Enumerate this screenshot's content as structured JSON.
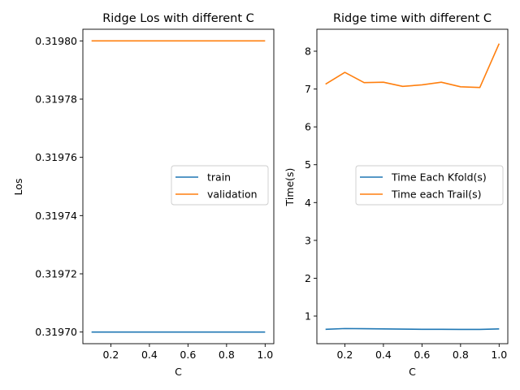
{
  "chart_data": [
    {
      "type": "line",
      "title": "Ridge Los with different C",
      "xlabel": "C",
      "ylabel": "Los",
      "xlim": [
        0.055,
        1.045
      ],
      "ylim": [
        0.319696,
        0.319804
      ],
      "xticks": [
        0.2,
        0.4,
        0.6,
        0.8,
        1.0
      ],
      "xtick_labels": [
        "0.2",
        "0.4",
        "0.6",
        "0.8",
        "1.0"
      ],
      "yticks": [
        0.3197,
        0.31972,
        0.31974,
        0.31976,
        0.31978,
        0.3198
      ],
      "ytick_labels": [
        "0.31970",
        "0.31972",
        "0.31974",
        "0.31976",
        "0.31978",
        "0.31980"
      ],
      "x": [
        0.1,
        0.2,
        0.3,
        0.4,
        0.5,
        0.6,
        0.7,
        0.8,
        0.9,
        1.0
      ],
      "series": [
        {
          "name": "train",
          "color": "#1f77b4",
          "values": [
            0.3197,
            0.3197,
            0.3197,
            0.3197,
            0.3197,
            0.3197,
            0.3197,
            0.3197,
            0.3197,
            0.3197
          ]
        },
        {
          "name": "validation",
          "color": "#ff7f0e",
          "values": [
            0.3198,
            0.3198,
            0.3198,
            0.3198,
            0.3198,
            0.3198,
            0.3198,
            0.3198,
            0.3198,
            0.3198
          ]
        }
      ],
      "legend": "center-right",
      "grid": false
    },
    {
      "type": "line",
      "title": "Ridge time with different C",
      "xlabel": "C",
      "ylabel": "Time(s)",
      "xlim": [
        0.055,
        1.045
      ],
      "ylim": [
        0.27,
        8.58
      ],
      "xticks": [
        0.2,
        0.4,
        0.6,
        0.8,
        1.0
      ],
      "xtick_labels": [
        "0.2",
        "0.4",
        "0.6",
        "0.8",
        "1.0"
      ],
      "yticks": [
        1,
        2,
        3,
        4,
        5,
        6,
        7,
        8
      ],
      "ytick_labels": [
        "1",
        "2",
        "3",
        "4",
        "5",
        "6",
        "7",
        "8"
      ],
      "x": [
        0.1,
        0.2,
        0.3,
        0.4,
        0.5,
        0.6,
        0.7,
        0.8,
        0.9,
        1.0
      ],
      "series": [
        {
          "name": "Time Each Kfold(s)",
          "color": "#1f77b4",
          "values": [
            0.65,
            0.67,
            0.665,
            0.66,
            0.655,
            0.65,
            0.65,
            0.648,
            0.648,
            0.66
          ]
        },
        {
          "name": "Time each Trail(s)",
          "color": "#ff7f0e",
          "values": [
            7.13,
            7.44,
            7.17,
            7.18,
            7.07,
            7.11,
            7.18,
            7.06,
            7.04,
            8.2
          ]
        }
      ],
      "legend": "center-right",
      "grid": false
    }
  ]
}
